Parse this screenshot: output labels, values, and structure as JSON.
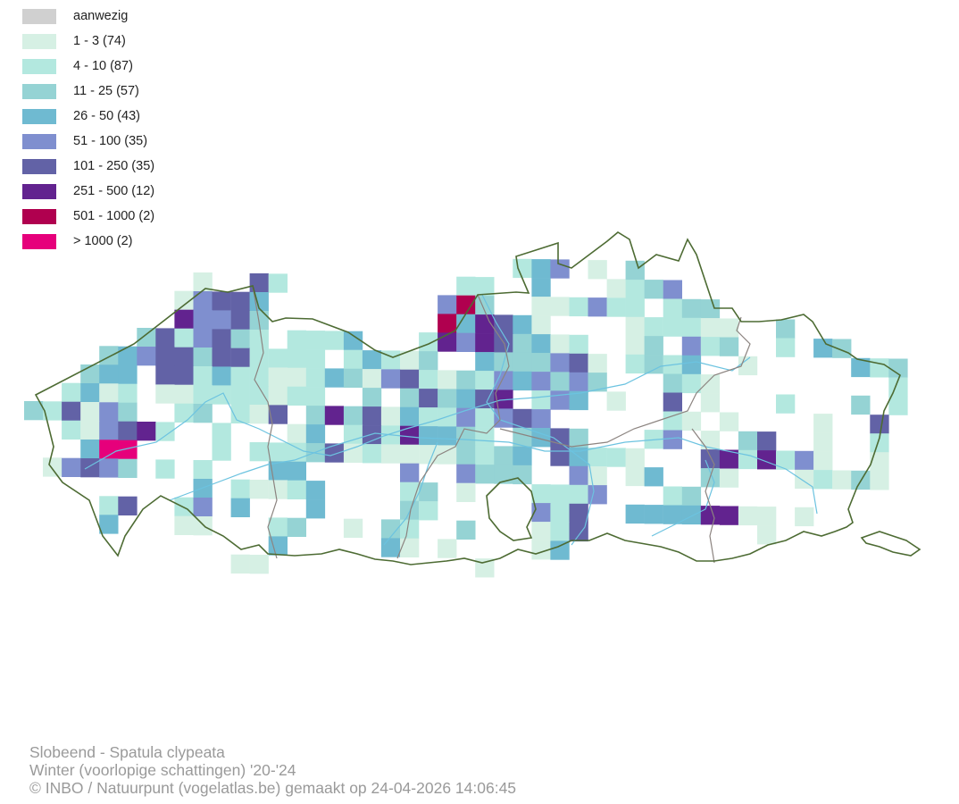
{
  "legend": {
    "items": [
      {
        "label": "aanwezig",
        "color": "#d0d0d0"
      },
      {
        "label": "1 - 3 (74)",
        "color": "#d6f0e4"
      },
      {
        "label": "4 - 10 (87)",
        "color": "#b3e8df"
      },
      {
        "label": "11 - 25 (57)",
        "color": "#95d3d4"
      },
      {
        "label": "26 - 50 (43)",
        "color": "#6fbad1"
      },
      {
        "label": "51 - 100 (35)",
        "color": "#7f8fcf"
      },
      {
        "label": "101 - 250 (35)",
        "color": "#6262a6"
      },
      {
        "label": "251 - 500 (12)",
        "color": "#62238f"
      },
      {
        "label": "501 - 1000 (2)",
        "color": "#b0004f"
      },
      {
        "label": "> 1000 (2)",
        "color": "#e6007b"
      }
    ]
  },
  "map": {
    "border_color": "#4d6b33",
    "province_border_color": "#8c8480",
    "river_color": "#6cc3e0"
  },
  "footer": {
    "species": "Slobeend - Spatula clypeata",
    "season": "Winter (voorlopige schattingen) '20-'24",
    "credit": "© INBO / Natuurpunt (vogelatlas.be) gemaakt op 24-04-2026 14:06:45"
  }
}
